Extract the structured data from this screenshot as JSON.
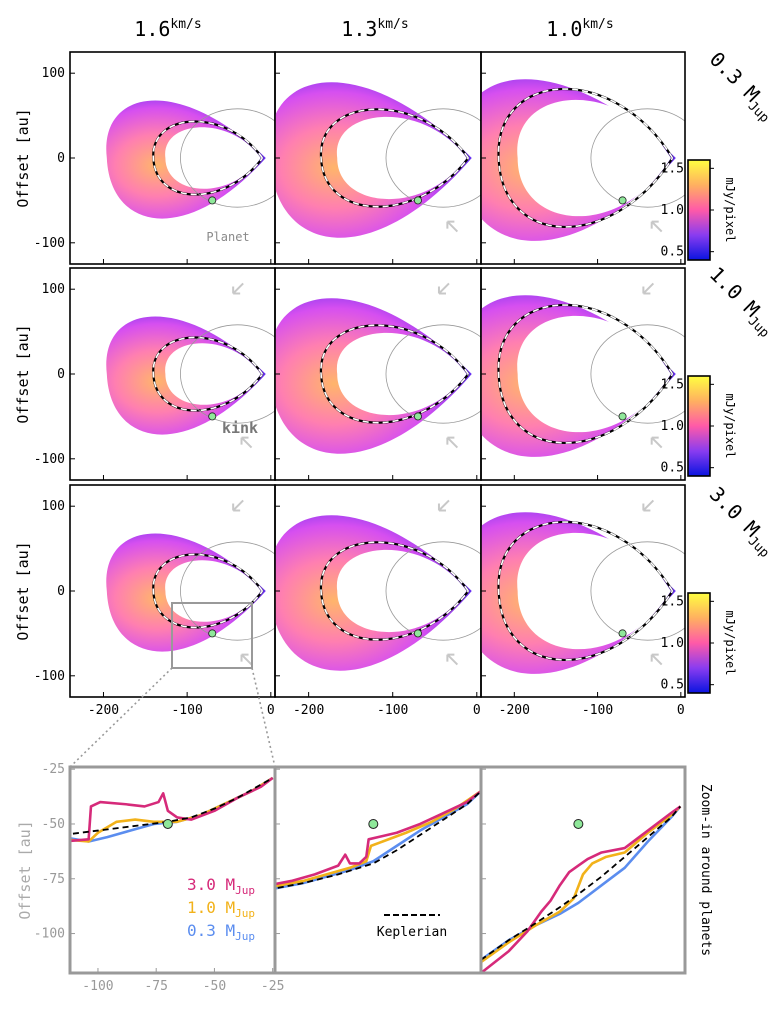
{
  "chart_data": [
    {
      "type": "heatmap",
      "description_grid": "3x3 simulated channel maps; rows = planet mass, columns = velocity channel",
      "column_labels": [
        {
          "value": "1.6",
          "unit": "km/s"
        },
        {
          "value": "1.3",
          "unit": "km/s"
        },
        {
          "value": "1.0",
          "unit": "km/s"
        }
      ],
      "row_labels": [
        {
          "value": "0.3 M",
          "sub": "Jup"
        },
        {
          "value": "1.0 M",
          "sub": "Jup"
        },
        {
          "value": "3.0 M",
          "sub": "Jup"
        }
      ],
      "xlim": [
        -240,
        5
      ],
      "ylim": [
        -125,
        125
      ],
      "xticks": [
        -200,
        -100,
        0
      ],
      "yticks": [
        100,
        0,
        -100
      ],
      "ylabel": "Offset [au]",
      "colorbar": {
        "label": "mJy/pixel",
        "range": [
          0.4,
          1.6
        ],
        "ticks": [
          0.5,
          1.0,
          1.5
        ],
        "colors": [
          "#0a14e0",
          "#8a3cf0",
          "#ff5aa8",
          "#ffb060",
          "#ffff40"
        ]
      },
      "planet": {
        "x": -70,
        "y": -50,
        "color": "#8fe89a"
      },
      "annotations": {
        "planet_label": "Planet",
        "kink_label": "kink"
      }
    },
    {
      "type": "line",
      "title": "Zoom-in around planets",
      "ylabel": "Offset [au]",
      "xlim": [
        -112,
        -24
      ],
      "ylim": [
        -118,
        -24
      ],
      "xticks": [
        -100,
        -75,
        -50,
        -25
      ],
      "yticks": [
        -25,
        -50,
        -75,
        -100
      ],
      "panels": [
        {
          "series": [
            {
              "name": "3.0 M_Jup",
              "color": "#d62a7a",
              "values": [
                [
                  -115,
                  -58
                ],
                [
                  -104,
                  -57
                ],
                [
                  -103,
                  -42
                ],
                [
                  -99,
                  -40
                ],
                [
                  -88,
                  -41
                ],
                [
                  -80,
                  -42
                ],
                [
                  -74,
                  -40
                ],
                [
                  -72,
                  -36
                ],
                [
                  -70,
                  -44
                ],
                [
                  -66,
                  -47
                ],
                [
                  -60,
                  -48
                ],
                [
                  -50,
                  -44
                ],
                [
                  -40,
                  -38
                ],
                [
                  -30,
                  -33
                ],
                [
                  -25,
                  -29
                ]
              ]
            },
            {
              "name": "1.0 M_Jup",
              "color": "#f2b21a",
              "values": [
                [
                  -115,
                  -57
                ],
                [
                  -104,
                  -58
                ],
                [
                  -100,
                  -54
                ],
                [
                  -92,
                  -49
                ],
                [
                  -84,
                  -48
                ],
                [
                  -76,
                  -49
                ],
                [
                  -66,
                  -49
                ],
                [
                  -56,
                  -46
                ],
                [
                  -44,
                  -40
                ],
                [
                  -34,
                  -35
                ],
                [
                  -25,
                  -29
                ]
              ]
            },
            {
              "name": "0.3 M_Jup",
              "color": "#5b8def",
              "values": [
                [
                  -115,
                  -56
                ],
                [
                  -104,
                  -58
                ],
                [
                  -96,
                  -56
                ],
                [
                  -86,
                  -53
                ],
                [
                  -76,
                  -50
                ],
                [
                  -66,
                  -49
                ],
                [
                  -56,
                  -46
                ],
                [
                  -44,
                  -40
                ],
                [
                  -34,
                  -35
                ],
                [
                  -25,
                  -29
                ]
              ]
            },
            {
              "name": "Keplerian",
              "color": "#000000",
              "dashed": true,
              "values": [
                [
                  -115,
                  -55
                ],
                [
                  -100,
                  -53
                ],
                [
                  -85,
                  -51
                ],
                [
                  -70,
                  -49
                ],
                [
                  -60,
                  -47
                ],
                [
                  -50,
                  -43
                ],
                [
                  -40,
                  -38
                ],
                [
                  -30,
                  -32
                ],
                [
                  -25,
                  -29
                ]
              ]
            }
          ],
          "legend": [
            {
              "label": "3.0 M",
              "sub": "Jup",
              "color": "#d62a7a"
            },
            {
              "label": "1.0 M",
              "sub": "Jup",
              "color": "#f2b21a"
            },
            {
              "label": "0.3 M",
              "sub": "Jup",
              "color": "#5b8def"
            }
          ]
        },
        {
          "series": [
            {
              "name": "3.0 M_Jup",
              "color": "#d62a7a",
              "values": [
                [
                  -115,
                  -78
                ],
                [
                  -105,
                  -76
                ],
                [
                  -95,
                  -73
                ],
                [
                  -85,
                  -69
                ],
                [
                  -82,
                  -64
                ],
                [
                  -80,
                  -68
                ],
                [
                  -76,
                  -68
                ],
                [
                  -73,
                  -65
                ],
                [
                  -72,
                  -57
                ],
                [
                  -68,
                  -56
                ],
                [
                  -60,
                  -54
                ],
                [
                  -50,
                  -50
                ],
                [
                  -40,
                  -45
                ],
                [
                  -30,
                  -40
                ],
                [
                  -24,
                  -35
                ]
              ]
            },
            {
              "name": "1.0 M_Jup",
              "color": "#f2b21a",
              "values": [
                [
                  -115,
                  -79
                ],
                [
                  -100,
                  -76
                ],
                [
                  -90,
                  -73
                ],
                [
                  -80,
                  -70
                ],
                [
                  -73,
                  -67
                ],
                [
                  -71,
                  -60
                ],
                [
                  -66,
                  -58
                ],
                [
                  -56,
                  -54
                ],
                [
                  -45,
                  -49
                ],
                [
                  -35,
                  -43
                ],
                [
                  -24,
                  -35
                ]
              ]
            },
            {
              "name": "0.3 M_Jup",
              "color": "#5b8def",
              "values": [
                [
                  -115,
                  -80
                ],
                [
                  -100,
                  -77
                ],
                [
                  -90,
                  -74
                ],
                [
                  -80,
                  -71
                ],
                [
                  -70,
                  -67
                ],
                [
                  -60,
                  -60
                ],
                [
                  -50,
                  -53
                ],
                [
                  -40,
                  -47
                ],
                [
                  -30,
                  -41
                ],
                [
                  -24,
                  -35
                ]
              ]
            },
            {
              "name": "Keplerian",
              "color": "#000000",
              "dashed": true,
              "values": [
                [
                  -115,
                  -80
                ],
                [
                  -100,
                  -77
                ],
                [
                  -85,
                  -73
                ],
                [
                  -70,
                  -68
                ],
                [
                  -60,
                  -62
                ],
                [
                  -50,
                  -55
                ],
                [
                  -40,
                  -48
                ],
                [
                  -30,
                  -41
                ],
                [
                  -24,
                  -35
                ]
              ]
            }
          ],
          "legend": [
            {
              "label": "Keplerian",
              "color": "#000000",
              "dashed": true
            }
          ]
        },
        {
          "series": [
            {
              "name": "3.0 M_Jup",
              "color": "#d62a7a",
              "values": [
                [
                  -112,
                  -118
                ],
                [
                  -100,
                  -108
                ],
                [
                  -92,
                  -99
                ],
                [
                  -86,
                  -90
                ],
                [
                  -82,
                  -85
                ],
                [
                  -78,
                  -78
                ],
                [
                  -74,
                  -72
                ],
                [
                  -70,
                  -69
                ],
                [
                  -66,
                  -66
                ],
                [
                  -60,
                  -63
                ],
                [
                  -50,
                  -61
                ],
                [
                  -40,
                  -53
                ],
                [
                  -30,
                  -45
                ],
                [
                  -26,
                  -42
                ]
              ]
            },
            {
              "name": "1.0 M_Jup",
              "color": "#f2b21a",
              "values": [
                [
                  -112,
                  -113
                ],
                [
                  -100,
                  -104
                ],
                [
                  -88,
                  -96
                ],
                [
                  -78,
                  -90
                ],
                [
                  -72,
                  -84
                ],
                [
                  -68,
                  -73
                ],
                [
                  -64,
                  -68
                ],
                [
                  -58,
                  -65
                ],
                [
                  -50,
                  -63
                ],
                [
                  -40,
                  -54
                ],
                [
                  -30,
                  -46
                ],
                [
                  -26,
                  -42
                ]
              ]
            },
            {
              "name": "0.3 M_Jup",
              "color": "#5b8def",
              "values": [
                [
                  -112,
                  -112
                ],
                [
                  -100,
                  -103
                ],
                [
                  -88,
                  -96
                ],
                [
                  -78,
                  -91
                ],
                [
                  -70,
                  -86
                ],
                [
                  -60,
                  -78
                ],
                [
                  -50,
                  -70
                ],
                [
                  -40,
                  -58
                ],
                [
                  -30,
                  -47
                ],
                [
                  -26,
                  -42
                ]
              ]
            },
            {
              "name": "Keplerian",
              "color": "#000000",
              "dashed": true,
              "values": [
                [
                  -112,
                  -112
                ],
                [
                  -100,
                  -103
                ],
                [
                  -88,
                  -95
                ],
                [
                  -78,
                  -88
                ],
                [
                  -70,
                  -82
                ],
                [
                  -60,
                  -74
                ],
                [
                  -50,
                  -65
                ],
                [
                  -40,
                  -56
                ],
                [
                  -30,
                  -47
                ],
                [
                  -26,
                  -42
                ]
              ]
            }
          ]
        }
      ],
      "planet": {
        "x": -70,
        "y": -50,
        "color": "#8fe89a"
      }
    }
  ]
}
